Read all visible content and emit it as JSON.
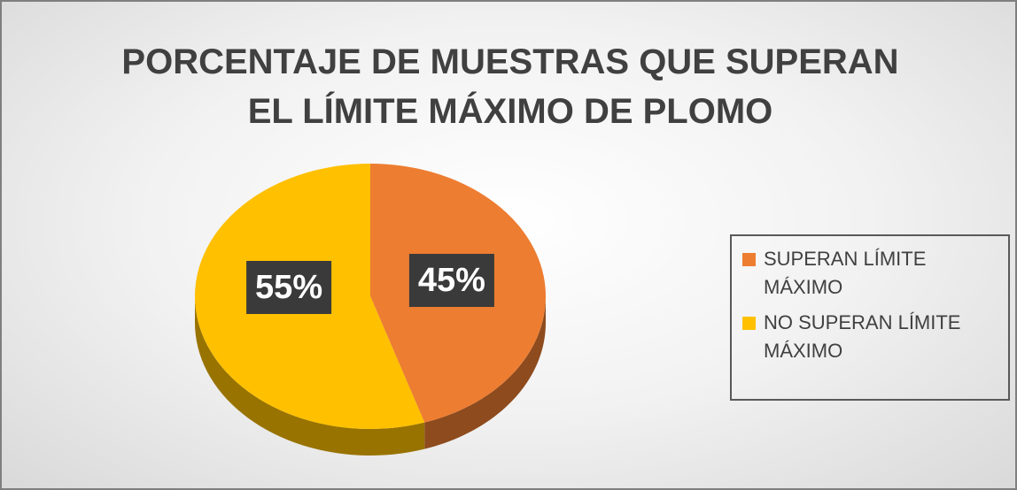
{
  "chart_data": {
    "type": "pie",
    "title": "PORCENTAJE DE MUESTRAS QUE SUPERAN EL LÍMITE MÁXIMO DE PLOMO",
    "categories": [
      "SUPERAN LÍMITE MÁXIMO",
      "NO SUPERAN LÍMITE MÁXIMO"
    ],
    "values": [
      45,
      55
    ],
    "value_labels": [
      "45%",
      "55%"
    ],
    "colors": [
      "#ed7d31",
      "#ffc000"
    ],
    "legend": "right"
  }
}
